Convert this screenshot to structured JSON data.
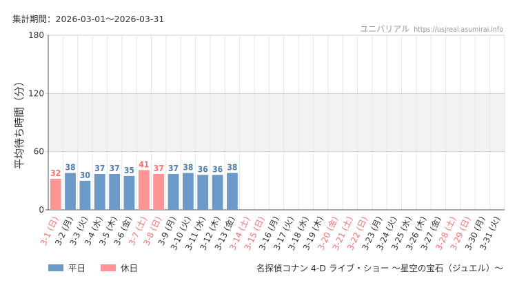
{
  "header": {
    "period_label": "集計期間：2026-03-01～2026-03-31",
    "site_name": "ユニバリアル",
    "site_url": "https://usjreal.asumirai.info"
  },
  "footer": {
    "attraction_name": "名探偵コナン 4-D ライブ・ショー ～星空の宝石（ジュエル）～"
  },
  "colors": {
    "weekday_bar": "#6b9ac8",
    "holiday_bar": "#ff9494",
    "weekday_label": "#4a7db5",
    "holiday_label": "#ff7070",
    "band": "#f2f2f2",
    "grid": "#e6e6e6",
    "axis_text": "#333333"
  },
  "chart_data": {
    "type": "bar",
    "ylabel": "平均待ち時間（分）",
    "ylim": [
      0,
      180
    ],
    "yticks": [
      0,
      60,
      120,
      180
    ],
    "shaded_bands": [
      [
        120,
        180
      ],
      [
        60,
        120
      ]
    ],
    "legend": [
      {
        "label": "平日",
        "type": "weekday"
      },
      {
        "label": "休日",
        "type": "holiday"
      }
    ],
    "categories": [
      "3-1 (日)",
      "3-2 (月)",
      "3-3 (火)",
      "3-4 (水)",
      "3-5 (木)",
      "3-6 (金)",
      "3-7 (土)",
      "3-8 (日)",
      "3-9 (月)",
      "3-10 (火)",
      "3-11 (水)",
      "3-12 (木)",
      "3-13 (金)",
      "3-14 (土)",
      "3-15 (日)",
      "3-16 (月)",
      "3-17 (火)",
      "3-18 (水)",
      "3-19 (木)",
      "3-20 (金)",
      "3-21 (土)",
      "3-22 (日)",
      "3-23 (月)",
      "3-24 (火)",
      "3-25 (水)",
      "3-26 (木)",
      "3-27 (金)",
      "3-28 (土)",
      "3-29 (日)",
      "3-30 (月)",
      "3-31 (火)"
    ],
    "holiday": [
      true,
      false,
      false,
      false,
      false,
      false,
      true,
      true,
      false,
      false,
      false,
      false,
      false,
      true,
      true,
      false,
      false,
      false,
      false,
      true,
      true,
      true,
      false,
      false,
      false,
      false,
      false,
      true,
      true,
      false,
      false
    ],
    "values": [
      32,
      38,
      30,
      37,
      37,
      35,
      41,
      37,
      37,
      38,
      36,
      36,
      38,
      null,
      null,
      null,
      null,
      null,
      null,
      null,
      null,
      null,
      null,
      null,
      null,
      null,
      null,
      null,
      null,
      null,
      null
    ]
  }
}
